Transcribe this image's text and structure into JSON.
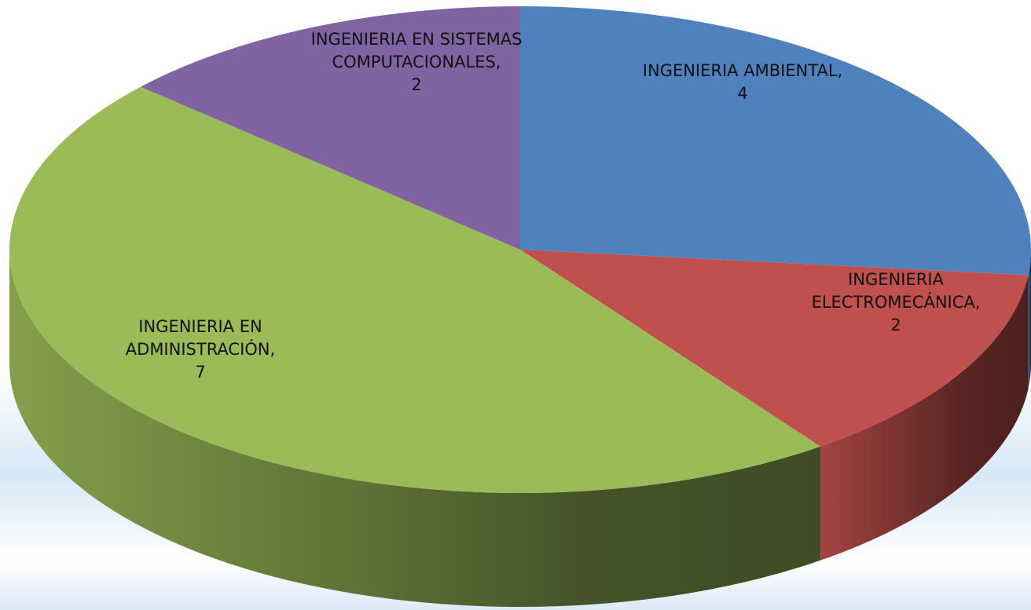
{
  "chart_data": {
    "type": "pie",
    "categories": [
      "INGENIERIA AMBIENTAL,",
      "INGENIERIA ELECTROMECÁNICA,",
      "INGENIERIA EN ADMINISTRACIÓN,",
      "INGENIERIA EN SISTEMAS COMPUTACIONALES,"
    ],
    "values": [
      4,
      2,
      7,
      2
    ],
    "colors": [
      "#4f81bd",
      "#c0504d",
      "#9bbb59",
      "#8064a2"
    ]
  }
}
